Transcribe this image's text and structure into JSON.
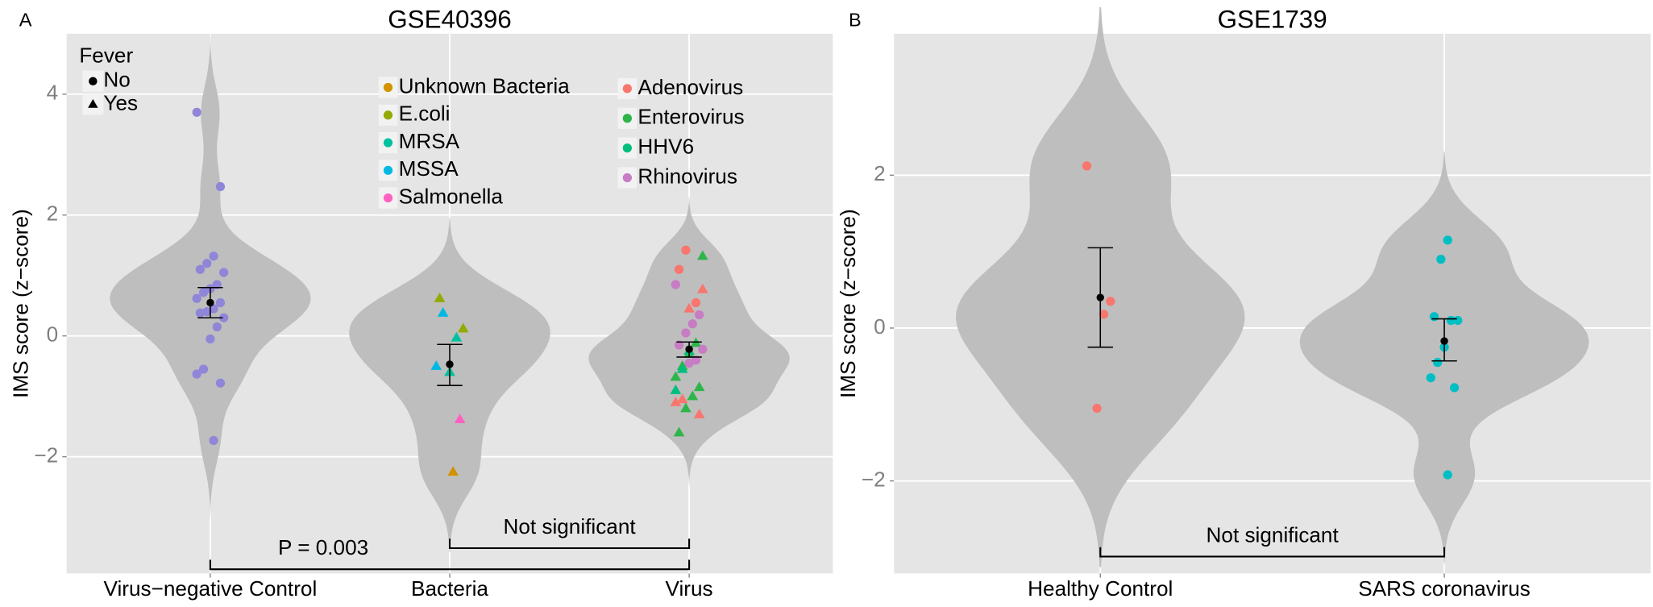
{
  "chart_data": [
    {
      "type": "violin",
      "panel_label": "A",
      "title": "GSE40396",
      "y_label": "IMS score (z−score)",
      "categories": [
        "Virus−negative Control",
        "Bacteria",
        "Virus"
      ],
      "ylim": [
        -3.93,
        5.0
      ],
      "yticks": [
        {
          "value": -2,
          "label": "−2"
        },
        0,
        2,
        4
      ],
      "grid": true,
      "fever_legend": {
        "title": "Fever",
        "items": [
          {
            "name": "No",
            "shape": "circle"
          },
          {
            "name": "Yes",
            "shape": "triangle"
          }
        ]
      },
      "series": [
        {
          "category": "Virus−negative Control",
          "color": "#8f86d8",
          "values": [
            3.7,
            2.47,
            1.32,
            1.2,
            1.1,
            1.05,
            0.85,
            0.78,
            0.72,
            0.62,
            0.55,
            0.45,
            0.4,
            0.38,
            0.3,
            0.15,
            -0.05,
            -0.55,
            -0.63,
            -0.78,
            -1.73
          ],
          "fever": [
            "No",
            "No",
            "No",
            "No",
            "No",
            "No",
            "No",
            "No",
            "No",
            "No",
            "No",
            "No",
            "No",
            "No",
            "No",
            "No",
            "No",
            "No",
            "No",
            "No",
            "No"
          ]
        },
        {
          "name": "Unknown Bacteria",
          "category": "Bacteria",
          "color": "#d39200",
          "values": [
            -2.25
          ],
          "fever": [
            "Yes"
          ]
        },
        {
          "name": "E.coli",
          "category": "Bacteria",
          "color": "#93aa00",
          "values": [
            0.62,
            0.12
          ],
          "fever": [
            "Yes",
            "Yes"
          ]
        },
        {
          "name": "MRSA",
          "category": "Bacteria",
          "color": "#00c19f",
          "values": [
            -0.03,
            -0.6
          ],
          "fever": [
            "Yes",
            "Yes"
          ]
        },
        {
          "name": "MSSA",
          "category": "Bacteria",
          "color": "#00b9e3",
          "values": [
            0.38,
            -0.5
          ],
          "fever": [
            "Yes",
            "Yes"
          ]
        },
        {
          "name": "Salmonella",
          "category": "Bacteria",
          "color": "#ff61c3",
          "values": [
            -1.38
          ],
          "fever": [
            "Yes"
          ]
        },
        {
          "name": "Adenovirus",
          "category": "Virus",
          "color": "#f8766d",
          "values": [
            1.42,
            1.1,
            0.77,
            0.55,
            0.45,
            -1.05,
            -1.1,
            -1.3
          ],
          "fever": [
            "No",
            "No",
            "Yes",
            "No",
            "Yes",
            "Yes",
            "Yes",
            "Yes"
          ]
        },
        {
          "name": "Enterovirus",
          "category": "Virus",
          "color": "#2db54a",
          "values": [
            1.32,
            -0.12,
            -0.3,
            -0.5,
            -0.68,
            -0.85,
            -1.0,
            -1.2,
            -1.6
          ],
          "fever": [
            "Yes",
            "Yes",
            "Yes",
            "Yes",
            "Yes",
            "Yes",
            "Yes",
            "Yes",
            "Yes"
          ]
        },
        {
          "name": "HHV6",
          "category": "Virus",
          "color": "#00bf7d",
          "values": [
            -0.25,
            -0.55,
            -0.9
          ],
          "fever": [
            "Yes",
            "Yes",
            "Yes"
          ]
        },
        {
          "name": "Rhinovirus",
          "category": "Virus",
          "color": "#c77cc4",
          "values": [
            0.85,
            0.35,
            0.2,
            0.05,
            -0.15,
            -0.22,
            -0.4,
            -0.45
          ],
          "fever": [
            "No",
            "No",
            "No",
            "No",
            "No",
            "No",
            "No",
            "No"
          ]
        }
      ],
      "summary": [
        {
          "mean": 0.55,
          "low": 0.3,
          "high": 0.8
        },
        {
          "mean": -0.47,
          "low": -0.82,
          "high": -0.14
        },
        {
          "mean": -0.22,
          "low": -0.35,
          "high": -0.1
        }
      ],
      "annotations": [
        {
          "text": "P = 0.003",
          "from": "Virus−negative Control",
          "to": "Virus"
        },
        {
          "text": "Not significant",
          "from": "Bacteria",
          "to": "Virus"
        }
      ]
    },
    {
      "type": "violin",
      "panel_label": "B",
      "title": "GSE1739",
      "y_label": "IMS score (z−score)",
      "categories": [
        "Healthy Control",
        "SARS coronavirus"
      ],
      "ylim": [
        -3.21,
        3.85
      ],
      "yticks": [
        {
          "value": -2,
          "label": "−2"
        },
        0,
        2
      ],
      "grid": true,
      "series": [
        {
          "category": "Healthy Control",
          "color": "#f8766d",
          "values": [
            2.12,
            0.35,
            0.18,
            -1.05
          ]
        },
        {
          "category": "SARS coronavirus",
          "color": "#00bfc4",
          "values": [
            1.15,
            0.9,
            0.15,
            0.1,
            0.1,
            -0.25,
            -0.45,
            -0.65,
            -0.78,
            -1.92
          ]
        }
      ],
      "summary": [
        {
          "mean": 0.4,
          "low": -0.25,
          "high": 1.05
        },
        {
          "mean": -0.17,
          "low": -0.43,
          "high": 0.12
        }
      ],
      "annotations": [
        {
          "text": "Not significant",
          "from": "Healthy Control",
          "to": "SARS coronavirus"
        }
      ]
    }
  ]
}
